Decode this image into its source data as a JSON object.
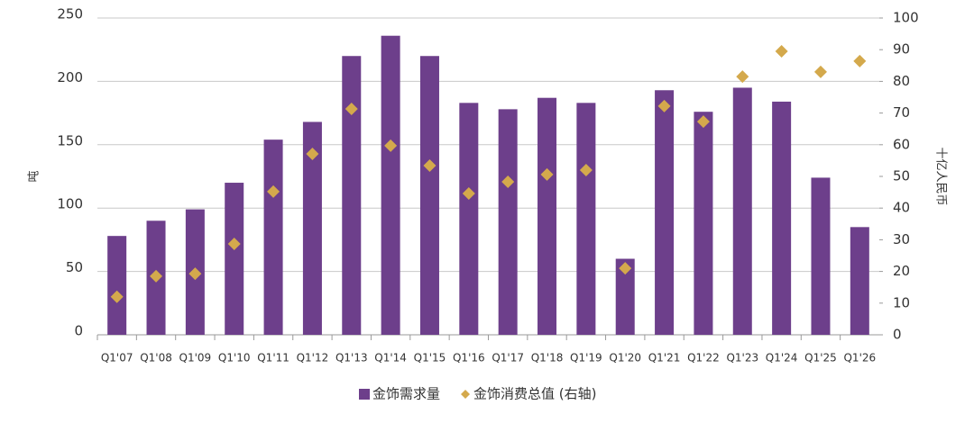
{
  "chart_data": {
    "type": "bar",
    "categories": [
      "Q1'07",
      "Q1'08",
      "Q1'09",
      "Q1'10",
      "Q1'11",
      "Q1'12",
      "Q1'13",
      "Q1'14",
      "Q1'15",
      "Q1'16",
      "Q1'17",
      "Q1'18",
      "Q1'19",
      "Q1'20",
      "Q1'21",
      "Q1'22",
      "Q1'23",
      "Q1'24",
      "Q1'25",
      "Q1'26"
    ],
    "series": [
      {
        "name": "金饰需求量",
        "type": "bar",
        "color": "#6d3f8b",
        "values": [
          78,
          90,
          99,
          120,
          154,
          168,
          220,
          236,
          220,
          183,
          178,
          187,
          183,
          60,
          193,
          176,
          195,
          184,
          124,
          85
        ]
      },
      {
        "name": "金饰消费总值 (右轴)",
        "type": "scatter",
        "axis": "y2",
        "color": "#d4a94c",
        "values": [
          12,
          18.5,
          19.3,
          28.7,
          45.2,
          57.1,
          71.3,
          59.7,
          53.4,
          44.6,
          48.3,
          50.6,
          52,
          21,
          72.2,
          67.3,
          81.5,
          89.5,
          83,
          86.4
        ]
      }
    ],
    "ylabel": "吨",
    "y2label": "十亿人民币",
    "ylim": [
      0,
      250
    ],
    "yticks": [
      0,
      50,
      100,
      150,
      200,
      250
    ],
    "y2lim": [
      0,
      100
    ],
    "y2ticks": [
      0,
      10,
      20,
      30,
      40,
      50,
      60,
      70,
      80,
      90,
      100
    ],
    "grid": true
  }
}
